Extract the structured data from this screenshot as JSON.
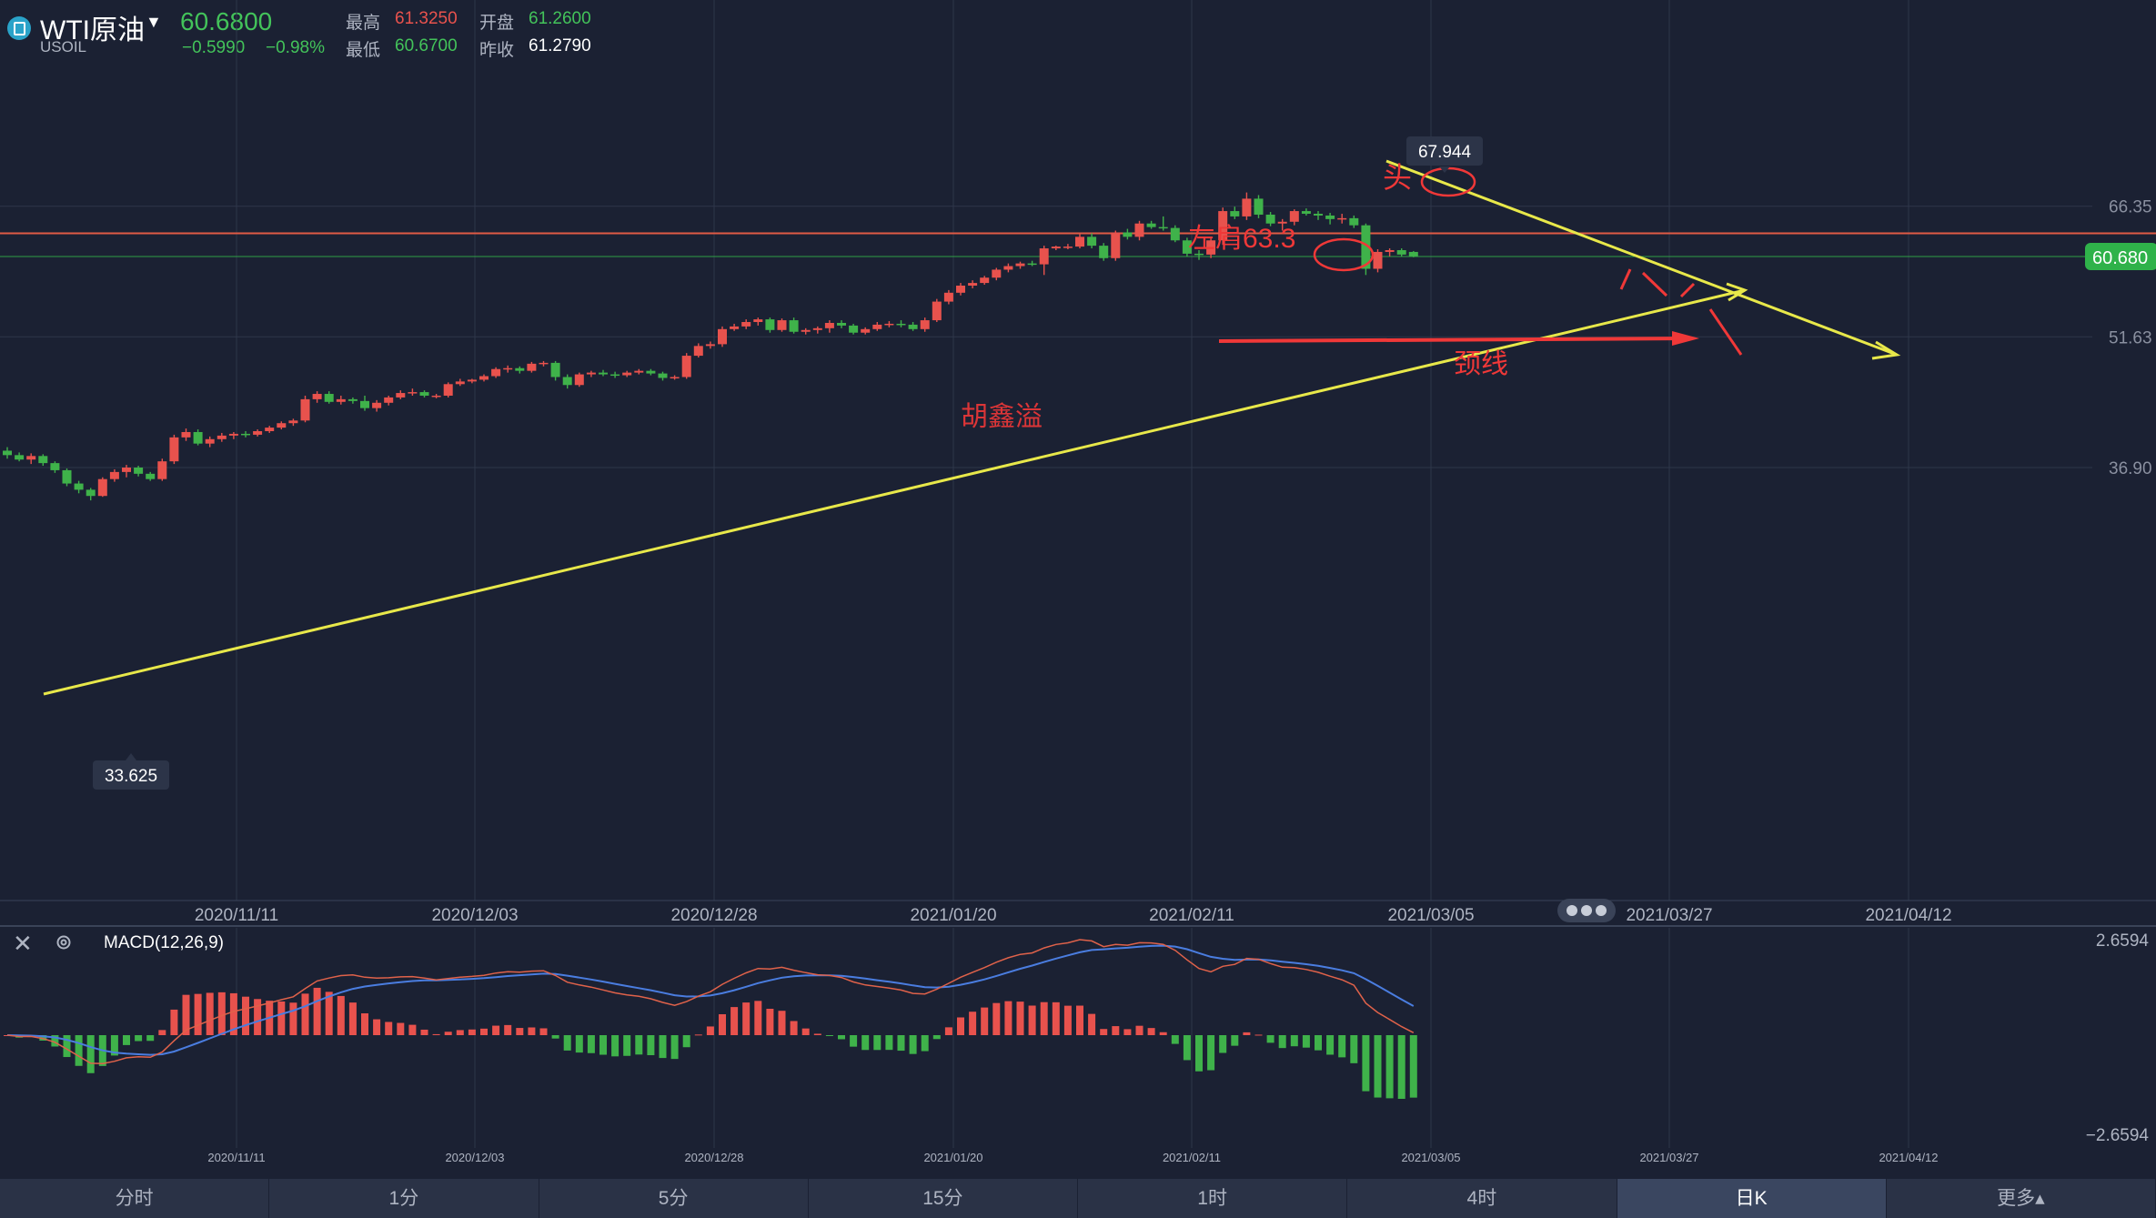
{
  "header": {
    "symbol": "WTI原油",
    "code": "USOIL",
    "last": "60.6800",
    "change": "−0.5990",
    "change_pct": "−0.98%",
    "high_label": "最高",
    "high": "61.3250",
    "open_label": "开盘",
    "open": "61.2600",
    "low_label": "最低",
    "low": "60.6700",
    "prev_label": "昨收",
    "prev": "61.2790"
  },
  "chart_data": {
    "type": "candlestick",
    "price_ticks": [
      "66.35",
      "51.63",
      "36.90"
    ],
    "price_tick_values": [
      66.35,
      51.63,
      36.9
    ],
    "last_price_label": "60.680",
    "last_price": 60.68,
    "high_marker": "67.944",
    "low_marker": "33.625",
    "x_labels": [
      "2020/11/11",
      "2020/12/03",
      "2020/12/28",
      "2021/01/20",
      "2021/02/11",
      "2021/03/05",
      "2021/03/27",
      "2021/04/12"
    ],
    "candles": [
      [
        38.8,
        39.2,
        37.9,
        38.3
      ],
      [
        38.3,
        38.6,
        37.6,
        37.8
      ],
      [
        37.8,
        38.5,
        37.3,
        38.2
      ],
      [
        38.2,
        38.4,
        37.1,
        37.4
      ],
      [
        37.4,
        37.6,
        36.3,
        36.6
      ],
      [
        36.6,
        36.8,
        34.8,
        35.1
      ],
      [
        35.1,
        35.4,
        34.0,
        34.4
      ],
      [
        34.4,
        34.6,
        33.2,
        33.7
      ],
      [
        33.7,
        35.8,
        33.6,
        35.6
      ],
      [
        35.6,
        36.7,
        35.3,
        36.4
      ],
      [
        36.4,
        37.2,
        35.8,
        36.9
      ],
      [
        36.9,
        37.1,
        35.9,
        36.2
      ],
      [
        36.2,
        36.4,
        35.4,
        35.6
      ],
      [
        35.6,
        37.9,
        35.4,
        37.6
      ],
      [
        37.6,
        40.6,
        37.3,
        40.3
      ],
      [
        40.3,
        41.3,
        39.9,
        40.9
      ],
      [
        40.9,
        41.2,
        39.4,
        39.6
      ],
      [
        39.6,
        40.4,
        39.2,
        40.1
      ],
      [
        40.1,
        40.8,
        39.8,
        40.5
      ],
      [
        40.5,
        40.9,
        40.1,
        40.7
      ],
      [
        40.7,
        41.0,
        40.3,
        40.6
      ],
      [
        40.6,
        41.2,
        40.4,
        41.0
      ],
      [
        41.0,
        41.6,
        40.8,
        41.4
      ],
      [
        41.4,
        42.1,
        41.2,
        41.9
      ],
      [
        41.9,
        42.4,
        41.6,
        42.2
      ],
      [
        42.2,
        45.0,
        42.0,
        44.6
      ],
      [
        44.6,
        45.5,
        44.2,
        45.2
      ],
      [
        45.2,
        45.5,
        44.1,
        44.3
      ],
      [
        44.3,
        45.0,
        44.0,
        44.6
      ],
      [
        44.6,
        44.8,
        44.1,
        44.4
      ],
      [
        44.4,
        45.0,
        43.3,
        43.6
      ],
      [
        43.6,
        44.5,
        43.2,
        44.2
      ],
      [
        44.2,
        45.0,
        43.9,
        44.8
      ],
      [
        44.8,
        45.6,
        44.6,
        45.3
      ],
      [
        45.3,
        45.8,
        45.0,
        45.4
      ],
      [
        45.4,
        45.6,
        44.8,
        45.0
      ],
      [
        45.0,
        45.2,
        44.7,
        45.0
      ],
      [
        45.0,
        46.5,
        44.8,
        46.3
      ],
      [
        46.3,
        46.9,
        46.1,
        46.6
      ],
      [
        46.6,
        46.9,
        46.4,
        46.8
      ],
      [
        46.8,
        47.4,
        46.6,
        47.2
      ],
      [
        47.2,
        48.2,
        47.0,
        48.0
      ],
      [
        48.0,
        48.4,
        47.6,
        48.1
      ],
      [
        48.1,
        48.3,
        47.5,
        47.8
      ],
      [
        47.8,
        48.8,
        47.6,
        48.6
      ],
      [
        48.6,
        48.9,
        48.3,
        48.7
      ],
      [
        48.7,
        48.9,
        46.7,
        47.1
      ],
      [
        47.1,
        47.4,
        45.8,
        46.2
      ],
      [
        46.2,
        47.6,
        46.0,
        47.4
      ],
      [
        47.4,
        47.8,
        47.1,
        47.6
      ],
      [
        47.6,
        47.9,
        47.2,
        47.4
      ],
      [
        47.4,
        47.7,
        47.0,
        47.3
      ],
      [
        47.3,
        47.8,
        47.1,
        47.6
      ],
      [
        47.6,
        48.0,
        47.4,
        47.8
      ],
      [
        47.8,
        48.0,
        47.3,
        47.5
      ],
      [
        47.5,
        47.7,
        46.7,
        47.0
      ],
      [
        47.0,
        47.3,
        46.8,
        47.1
      ],
      [
        47.1,
        49.8,
        46.9,
        49.5
      ],
      [
        49.5,
        50.9,
        49.3,
        50.6
      ],
      [
        50.6,
        51.1,
        50.3,
        50.8
      ],
      [
        50.8,
        52.8,
        50.5,
        52.5
      ],
      [
        52.5,
        53.1,
        52.3,
        52.8
      ],
      [
        52.8,
        53.6,
        52.5,
        53.3
      ],
      [
        53.3,
        53.8,
        52.9,
        53.6
      ],
      [
        53.6,
        53.8,
        52.1,
        52.4
      ],
      [
        52.4,
        53.7,
        52.2,
        53.5
      ],
      [
        53.5,
        53.8,
        52.0,
        52.2
      ],
      [
        52.2,
        52.6,
        51.9,
        52.4
      ],
      [
        52.4,
        52.8,
        52.0,
        52.6
      ],
      [
        52.6,
        53.5,
        52.1,
        53.2
      ],
      [
        53.2,
        53.5,
        52.6,
        52.9
      ],
      [
        52.9,
        53.1,
        51.9,
        52.1
      ],
      [
        52.1,
        52.7,
        51.9,
        52.5
      ],
      [
        52.5,
        53.3,
        52.3,
        53.0
      ],
      [
        53.0,
        53.4,
        52.7,
        53.1
      ],
      [
        53.1,
        53.5,
        52.7,
        53.0
      ],
      [
        53.0,
        53.3,
        52.3,
        52.5
      ],
      [
        52.5,
        53.8,
        52.2,
        53.5
      ],
      [
        53.5,
        55.9,
        53.3,
        55.6
      ],
      [
        55.6,
        56.9,
        55.3,
        56.6
      ],
      [
        56.6,
        57.7,
        56.3,
        57.4
      ],
      [
        57.4,
        58.0,
        57.1,
        57.7
      ],
      [
        57.7,
        58.5,
        57.5,
        58.3
      ],
      [
        58.3,
        59.4,
        58.0,
        59.2
      ],
      [
        59.2,
        59.9,
        58.9,
        59.6
      ],
      [
        59.6,
        60.1,
        59.3,
        59.9
      ],
      [
        59.9,
        60.2,
        59.6,
        59.8
      ],
      [
        59.8,
        61.9,
        58.6,
        61.6
      ],
      [
        61.6,
        61.9,
        61.4,
        61.8
      ],
      [
        61.8,
        62.1,
        61.5,
        61.8
      ],
      [
        61.8,
        63.2,
        61.6,
        62.9
      ],
      [
        62.9,
        63.3,
        61.6,
        61.9
      ],
      [
        61.9,
        62.2,
        60.2,
        60.5
      ],
      [
        60.5,
        63.6,
        60.2,
        63.4
      ],
      [
        63.4,
        63.8,
        62.6,
        62.9
      ],
      [
        62.9,
        64.7,
        62.5,
        64.4
      ],
      [
        64.4,
        64.7,
        63.8,
        64.0
      ],
      [
        64.0,
        65.2,
        63.6,
        63.9
      ],
      [
        63.9,
        64.2,
        62.3,
        62.5
      ],
      [
        62.5,
        62.8,
        60.7,
        61.0
      ],
      [
        61.0,
        61.4,
        60.3,
        60.9
      ],
      [
        60.9,
        62.8,
        60.5,
        62.5
      ],
      [
        62.5,
        66.2,
        62.0,
        65.8
      ],
      [
        65.8,
        66.3,
        64.9,
        65.2
      ],
      [
        65.2,
        67.9,
        64.8,
        67.2
      ],
      [
        67.2,
        67.6,
        65.0,
        65.4
      ],
      [
        65.4,
        65.7,
        64.1,
        64.4
      ],
      [
        64.4,
        64.9,
        63.6,
        64.6
      ],
      [
        64.6,
        66.0,
        64.2,
        65.8
      ],
      [
        65.8,
        66.1,
        65.3,
        65.5
      ],
      [
        65.5,
        65.8,
        64.8,
        65.3
      ],
      [
        65.3,
        65.6,
        64.3,
        64.9
      ],
      [
        64.9,
        65.5,
        64.4,
        65.0
      ],
      [
        65.0,
        65.3,
        63.9,
        64.2
      ],
      [
        64.2,
        64.4,
        58.6,
        59.3
      ],
      [
        59.3,
        61.5,
        58.9,
        61.2
      ],
      [
        61.2,
        61.6,
        60.7,
        61.4
      ],
      [
        61.4,
        61.6,
        60.7,
        60.9
      ],
      [
        61.2,
        61.3,
        60.6,
        60.7
      ]
    ],
    "annotations": {
      "head": "头",
      "left_shoulder": "左肩63.3",
      "neckline": "颈线",
      "watermark": "胡鑫溢"
    },
    "macd": {
      "label": "MACD(12,26,9)",
      "ticks": [
        "2.6594",
        "−2.6594"
      ],
      "x_labels": [
        "2020/11/11",
        "2020/12/03",
        "2020/12/28",
        "2021/01/20",
        "2021/02/11",
        "2021/03/05",
        "2021/03/27",
        "2021/04/12"
      ]
    }
  },
  "tabs": [
    "分时",
    "1分",
    "5分",
    "15分",
    "1时",
    "4时",
    "日K",
    "更多▴"
  ],
  "active_tab": "日K",
  "colors": {
    "bg": "#1b2133",
    "up": "#e8524d",
    "down": "#3fb24a",
    "trend": "#e8e84a",
    "annot": "#f03838",
    "grid": "#2e364a"
  }
}
